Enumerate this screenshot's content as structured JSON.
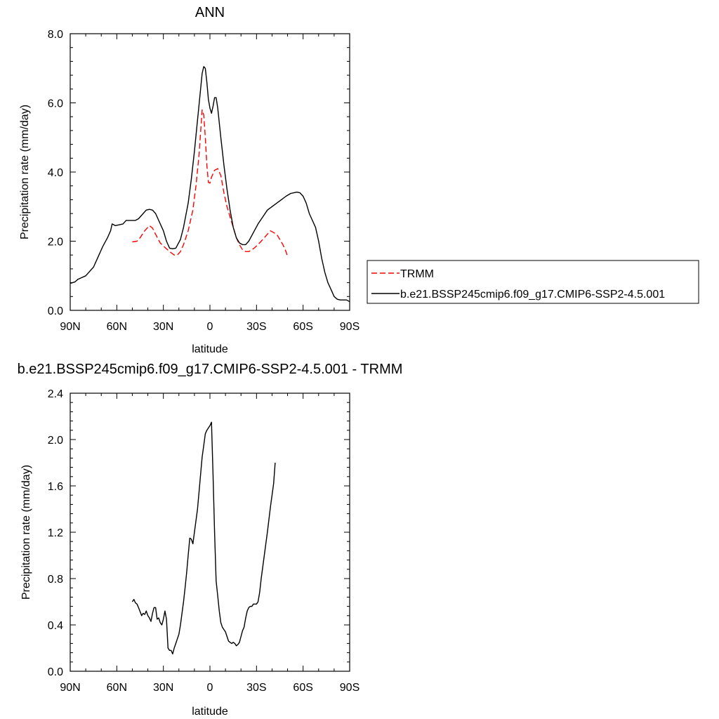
{
  "chart_data": [
    {
      "type": "line",
      "title": "ANN",
      "xlabel": "latitude",
      "ylabel": "Precipitation rate (mm/day)",
      "xlim": [
        90,
        -90
      ],
      "ylim": [
        0,
        8
      ],
      "x_ticks": [
        90,
        60,
        30,
        0,
        -30,
        -60,
        -90
      ],
      "x_tick_labels": [
        "90N",
        "60N",
        "30N",
        "0",
        "30S",
        "60S",
        "90S"
      ],
      "y_ticks": [
        0,
        2,
        4,
        6,
        8
      ],
      "y_tick_labels": [
        "0.0",
        "2.0",
        "4.0",
        "6.0",
        "8.0"
      ],
      "legend_position": "right",
      "series": [
        {
          "name": "TRMM",
          "color": "#ff0000",
          "dash": "dashed",
          "points": [
            [
              50,
              1.98
            ],
            [
              47,
              2.0
            ],
            [
              45,
              2.1
            ],
            [
              42,
              2.3
            ],
            [
              39,
              2.45
            ],
            [
              37,
              2.38
            ],
            [
              35,
              2.2
            ],
            [
              32,
              1.95
            ],
            [
              29,
              1.82
            ],
            [
              26,
              1.7
            ],
            [
              23,
              1.6
            ],
            [
              21,
              1.6
            ],
            [
              19,
              1.7
            ],
            [
              17,
              1.9
            ],
            [
              14,
              2.3
            ],
            [
              11,
              2.9
            ],
            [
              9,
              3.6
            ],
            [
              7,
              4.5
            ],
            [
              5,
              5.8
            ],
            [
              4,
              5.65
            ],
            [
              3,
              5.0
            ],
            [
              2,
              4.2
            ],
            [
              1,
              3.7
            ],
            [
              0,
              3.68
            ],
            [
              -1,
              3.85
            ],
            [
              -3,
              4.05
            ],
            [
              -5,
              4.1
            ],
            [
              -7,
              3.9
            ],
            [
              -9,
              3.4
            ],
            [
              -11,
              3.0
            ],
            [
              -13,
              2.7
            ],
            [
              -15,
              2.4
            ],
            [
              -17,
              2.1
            ],
            [
              -19,
              1.9
            ],
            [
              -21,
              1.75
            ],
            [
              -23,
              1.7
            ],
            [
              -25,
              1.7
            ],
            [
              -27,
              1.75
            ],
            [
              -29,
              1.82
            ],
            [
              -31,
              1.9
            ],
            [
              -33,
              2.0
            ],
            [
              -35,
              2.1
            ],
            [
              -37,
              2.2
            ],
            [
              -39,
              2.3
            ],
            [
              -41,
              2.25
            ],
            [
              -43,
              2.2
            ],
            [
              -45,
              2.05
            ],
            [
              -47,
              1.9
            ],
            [
              -49,
              1.7
            ],
            [
              -50,
              1.55
            ]
          ]
        },
        {
          "name": "b.e21.BSSP245cmip6.f09_g17.CMIP6-SSP2-4.5.001",
          "color": "#000000",
          "dash": "solid",
          "points": [
            [
              90,
              0.78
            ],
            [
              87,
              0.82
            ],
            [
              85,
              0.9
            ],
            [
              83,
              0.94
            ],
            [
              80,
              1.0
            ],
            [
              77,
              1.15
            ],
            [
              75,
              1.25
            ],
            [
              72,
              1.55
            ],
            [
              69,
              1.85
            ],
            [
              66,
              2.1
            ],
            [
              64,
              2.3
            ],
            [
              63,
              2.5
            ],
            [
              61,
              2.45
            ],
            [
              59,
              2.47
            ],
            [
              56,
              2.5
            ],
            [
              54,
              2.6
            ],
            [
              51,
              2.6
            ],
            [
              48,
              2.6
            ],
            [
              46,
              2.65
            ],
            [
              43,
              2.8
            ],
            [
              41,
              2.9
            ],
            [
              39,
              2.92
            ],
            [
              37,
              2.9
            ],
            [
              35,
              2.8
            ],
            [
              33,
              2.6
            ],
            [
              30,
              2.3
            ],
            [
              28,
              2.0
            ],
            [
              26,
              1.8
            ],
            [
              24,
              1.78
            ],
            [
              22,
              1.8
            ],
            [
              19,
              2.05
            ],
            [
              17,
              2.4
            ],
            [
              14,
              3.1
            ],
            [
              12,
              3.8
            ],
            [
              10,
              4.6
            ],
            [
              8,
              5.5
            ],
            [
              6,
              6.4
            ],
            [
              5,
              6.85
            ],
            [
              4,
              7.05
            ],
            [
              3,
              7.0
            ],
            [
              2,
              6.6
            ],
            [
              1,
              6.1
            ],
            [
              0,
              5.85
            ],
            [
              -1,
              5.7
            ],
            [
              -2,
              5.9
            ],
            [
              -3,
              6.15
            ],
            [
              -4,
              6.15
            ],
            [
              -5,
              5.85
            ],
            [
              -7,
              5.0
            ],
            [
              -9,
              4.2
            ],
            [
              -11,
              3.5
            ],
            [
              -13,
              2.9
            ],
            [
              -15,
              2.4
            ],
            [
              -17,
              2.1
            ],
            [
              -19,
              1.95
            ],
            [
              -21,
              1.9
            ],
            [
              -23,
              1.9
            ],
            [
              -25,
              2.0
            ],
            [
              -28,
              2.25
            ],
            [
              -31,
              2.5
            ],
            [
              -34,
              2.7
            ],
            [
              -37,
              2.9
            ],
            [
              -40,
              3.0
            ],
            [
              -43,
              3.1
            ],
            [
              -46,
              3.2
            ],
            [
              -49,
              3.3
            ],
            [
              -52,
              3.38
            ],
            [
              -54,
              3.4
            ],
            [
              -56,
              3.42
            ],
            [
              -58,
              3.4
            ],
            [
              -60,
              3.3
            ],
            [
              -62,
              3.1
            ],
            [
              -64,
              2.8
            ],
            [
              -66,
              2.6
            ],
            [
              -68,
              2.4
            ],
            [
              -70,
              2.0
            ],
            [
              -72,
              1.5
            ],
            [
              -74,
              1.1
            ],
            [
              -76,
              0.8
            ],
            [
              -78,
              0.6
            ],
            [
              -80,
              0.4
            ],
            [
              -82,
              0.32
            ],
            [
              -84,
              0.3
            ],
            [
              -86,
              0.3
            ],
            [
              -88,
              0.3
            ],
            [
              -90,
              0.25
            ]
          ]
        }
      ]
    },
    {
      "type": "line",
      "title": "b.e21.BSSP245cmip6.f09_g17.CMIP6-SSP2-4.5.001 - TRMM",
      "xlabel": "latitude",
      "ylabel": "Precipitation rate (mm/day)",
      "xlim": [
        90,
        -90
      ],
      "ylim": [
        0,
        2.4
      ],
      "x_ticks": [
        90,
        60,
        30,
        0,
        -30,
        -60,
        -90
      ],
      "x_tick_labels": [
        "90N",
        "60N",
        "30N",
        "0",
        "30S",
        "60S",
        "90S"
      ],
      "y_ticks": [
        0,
        0.4,
        0.8,
        1.2,
        1.6,
        2.0,
        2.4
      ],
      "y_tick_labels": [
        "0.0",
        "0.4",
        "0.8",
        "1.2",
        "1.6",
        "2.0",
        "2.4"
      ],
      "series": [
        {
          "color": "#000000",
          "dash": "solid",
          "points": [
            [
              50,
              0.6
            ],
            [
              49,
              0.62
            ],
            [
              48,
              0.59
            ],
            [
              47,
              0.58
            ],
            [
              46,
              0.55
            ],
            [
              44,
              0.48
            ],
            [
              43,
              0.5
            ],
            [
              42,
              0.49
            ],
            [
              41,
              0.52
            ],
            [
              40,
              0.48
            ],
            [
              39,
              0.46
            ],
            [
              38,
              0.43
            ],
            [
              37,
              0.5
            ],
            [
              36,
              0.55
            ],
            [
              35,
              0.55
            ],
            [
              34,
              0.45
            ],
            [
              33,
              0.46
            ],
            [
              32,
              0.42
            ],
            [
              31,
              0.4
            ],
            [
              30,
              0.45
            ],
            [
              29,
              0.52
            ],
            [
              28,
              0.45
            ],
            [
              27,
              0.2
            ],
            [
              26,
              0.18
            ],
            [
              25,
              0.18
            ],
            [
              24,
              0.15
            ],
            [
              23,
              0.2
            ],
            [
              22,
              0.24
            ],
            [
              21,
              0.28
            ],
            [
              20,
              0.32
            ],
            [
              19,
              0.4
            ],
            [
              18,
              0.5
            ],
            [
              17,
              0.6
            ],
            [
              16,
              0.72
            ],
            [
              15,
              0.85
            ],
            [
              14,
              1.0
            ],
            [
              13,
              1.15
            ],
            [
              12,
              1.14
            ],
            [
              11,
              1.1
            ],
            [
              10,
              1.2
            ],
            [
              9,
              1.3
            ],
            [
              8,
              1.4
            ],
            [
              7,
              1.55
            ],
            [
              6,
              1.7
            ],
            [
              5,
              1.85
            ],
            [
              4,
              1.95
            ],
            [
              3,
              2.05
            ],
            [
              2,
              2.08
            ],
            [
              1,
              2.1
            ],
            [
              0,
              2.12
            ],
            [
              -1,
              2.15
            ],
            [
              -2,
              1.7
            ],
            [
              -3,
              1.2
            ],
            [
              -4,
              0.78
            ],
            [
              -5,
              0.65
            ],
            [
              -6,
              0.52
            ],
            [
              -7,
              0.42
            ],
            [
              -8,
              0.38
            ],
            [
              -9,
              0.36
            ],
            [
              -10,
              0.34
            ],
            [
              -11,
              0.3
            ],
            [
              -12,
              0.26
            ],
            [
              -13,
              0.25
            ],
            [
              -14,
              0.24
            ],
            [
              -15,
              0.25
            ],
            [
              -16,
              0.24
            ],
            [
              -17,
              0.22
            ],
            [
              -18,
              0.23
            ],
            [
              -19,
              0.25
            ],
            [
              -20,
              0.3
            ],
            [
              -21,
              0.35
            ],
            [
              -22,
              0.38
            ],
            [
              -23,
              0.46
            ],
            [
              -24,
              0.52
            ],
            [
              -25,
              0.55
            ],
            [
              -26,
              0.56
            ],
            [
              -27,
              0.56
            ],
            [
              -28,
              0.58
            ],
            [
              -29,
              0.58
            ],
            [
              -30,
              0.58
            ],
            [
              -31,
              0.6
            ],
            [
              -32,
              0.68
            ],
            [
              -33,
              0.8
            ],
            [
              -35,
              1.0
            ],
            [
              -37,
              1.2
            ],
            [
              -39,
              1.42
            ],
            [
              -41,
              1.62
            ],
            [
              -42,
              1.8
            ]
          ]
        }
      ]
    }
  ]
}
